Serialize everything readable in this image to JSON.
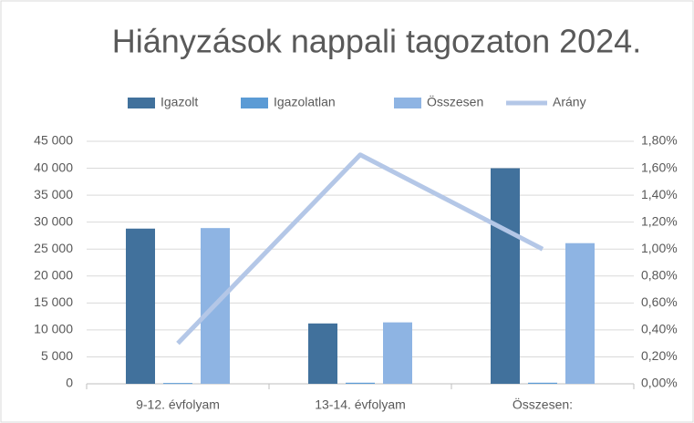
{
  "chart_data": {
    "type": "bar",
    "title": "Hiányzások nappali tagozaton 2024.",
    "categories": [
      "9-12. évfolyam",
      "13-14. évfolyam",
      "Összesen:"
    ],
    "series": [
      {
        "name": "Igazolt",
        "color": "#41719c",
        "type": "bar",
        "values": [
          28800,
          11200,
          40000
        ]
      },
      {
        "name": "Igazolatlan",
        "color": "#5b9bd5",
        "type": "bar",
        "values": [
          150,
          200,
          200
        ]
      },
      {
        "name": "Összesen",
        "color": "#8eb4e3",
        "type": "bar",
        "values": [
          28900,
          11400,
          26100
        ]
      },
      {
        "name": "Arány",
        "color": "#b4c7e7",
        "type": "line",
        "axis": "y2",
        "values": [
          0.3,
          1.7,
          1.0
        ]
      }
    ],
    "ylim": [
      0,
      45000
    ],
    "yticks": [
      0,
      {
        "value": 5000,
        "label": "5 000"
      },
      {
        "value": 10000,
        "label": "10 000"
      },
      {
        "value": 15000,
        "label": "15 000"
      },
      {
        "value": 20000,
        "label": "20 000"
      },
      {
        "value": 25000,
        "label": "25 000"
      },
      {
        "value": 30000,
        "label": "30 000"
      },
      {
        "value": 35000,
        "label": "35 000"
      },
      {
        "value": 40000,
        "label": "40 000"
      },
      {
        "value": 45000,
        "label": "45 000"
      }
    ],
    "y2lim": [
      0,
      1.8
    ],
    "y2ticks": [
      {
        "value": 0,
        "label": "0,00%"
      },
      {
        "value": 0.2,
        "label": "0,20%"
      },
      {
        "value": 0.4,
        "label": "0,40%"
      },
      {
        "value": 0.6,
        "label": "0,60%"
      },
      {
        "value": 0.8,
        "label": "0,80%"
      },
      {
        "value": 1.0,
        "label": "1,00%"
      },
      {
        "value": 1.2,
        "label": "1,20%"
      },
      {
        "value": 1.4,
        "label": "1,40%"
      },
      {
        "value": 1.6,
        "label": "1,60%"
      },
      {
        "value": 1.8,
        "label": "1,80%"
      }
    ],
    "grid": true,
    "legend": "top"
  }
}
